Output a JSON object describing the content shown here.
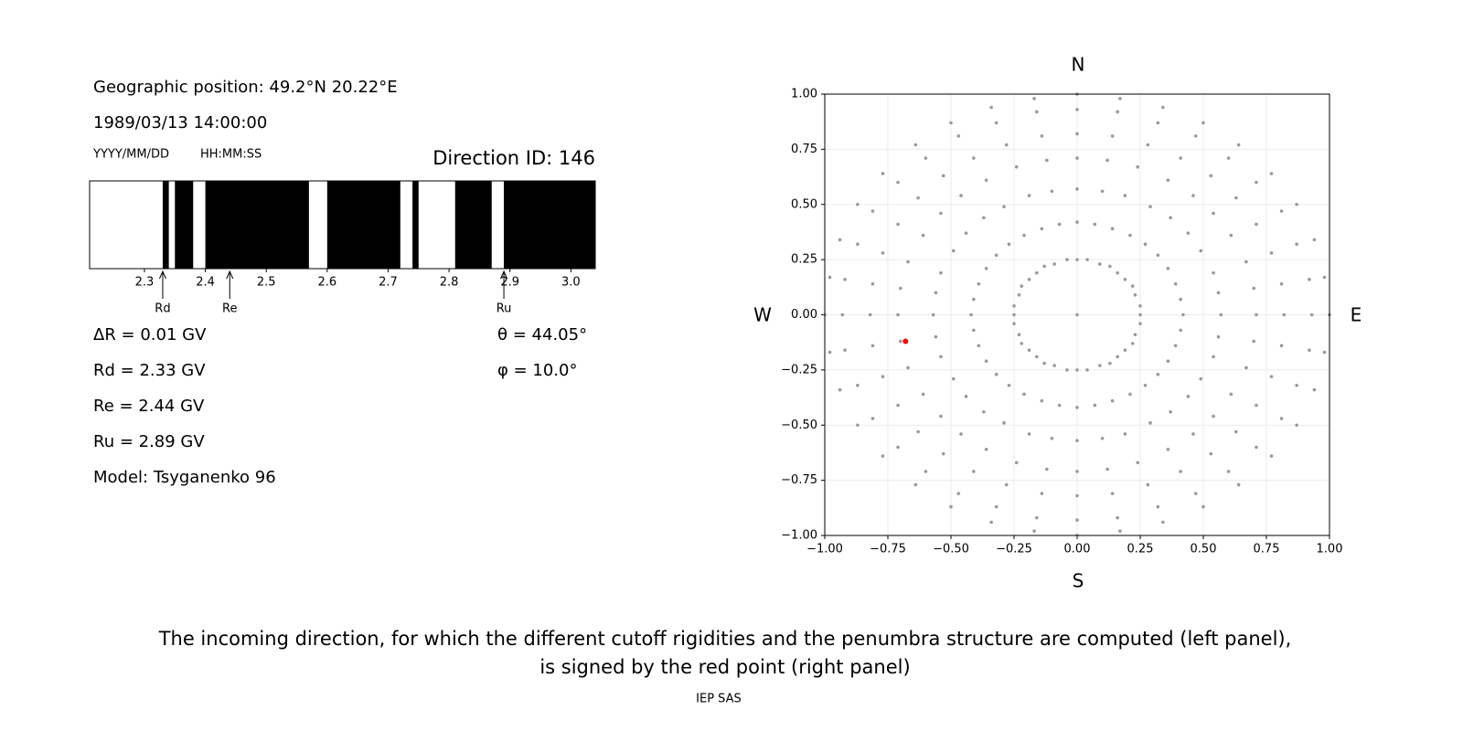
{
  "left_panel": {
    "position": "Geographic position: 49.2°N 20.22°E",
    "datetime": "1989/03/13 14:00:00",
    "date_format": "YYYY/MM/DD",
    "time_format": "HH:MM:SS",
    "direction_id": "Direction ID: 146",
    "parameters": [
      "ΔR = 0.01 GV",
      "Rd = 2.33 GV",
      "Re = 2.44 GV",
      "Ru = 2.89 GV",
      "Model: Tsyganenko 96"
    ],
    "angles": [
      "θ = 44.05°",
      "φ = 10.0°"
    ]
  },
  "chart_data": [
    {
      "type": "penumbra",
      "xlim": [
        2.21,
        3.04
      ],
      "xticks": [
        2.3,
        2.4,
        2.5,
        2.6,
        2.7,
        2.8,
        2.9,
        {
          "value": 3,
          "label": "3.0"
        }
      ],
      "color": "#000000",
      "intervals": [
        [
          2.33,
          2.34
        ],
        [
          2.35,
          2.38
        ],
        [
          2.4,
          2.57
        ],
        [
          2.6,
          2.72
        ],
        [
          2.74,
          2.75
        ],
        [
          2.81,
          2.87
        ],
        [
          2.89,
          3.04
        ]
      ],
      "markers": [
        {
          "label": "Rd",
          "value": 2.33
        },
        {
          "label": "Re",
          "value": 2.44
        },
        {
          "label": "Ru",
          "value": 2.89
        }
      ]
    },
    {
      "type": "scatter",
      "xlim": [
        -1,
        1
      ],
      "ylim": [
        -1,
        1
      ],
      "grid": true,
      "xticks": [
        {
          "value": -1,
          "label": "−1.00"
        },
        {
          "value": -0.75,
          "label": "−0.75"
        },
        {
          "value": -0.5,
          "label": "−0.50"
        },
        {
          "value": -0.25,
          "label": "−0.25"
        },
        {
          "value": 0,
          "label": "0.00"
        },
        {
          "value": 0.25,
          "label": "0.25"
        },
        {
          "value": 0.5,
          "label": "0.50"
        },
        {
          "value": 0.75,
          "label": "0.75"
        },
        {
          "value": 1,
          "label": "1.00"
        }
      ],
      "yticks": [
        {
          "value": -1,
          "label": "−1.00"
        },
        {
          "value": -0.75,
          "label": "−0.75"
        },
        {
          "value": -0.5,
          "label": "−0.50"
        },
        {
          "value": -0.25,
          "label": "−0.25"
        },
        {
          "value": 0,
          "label": "0.00"
        },
        {
          "value": 0.25,
          "label": "0.25"
        },
        {
          "value": 0.5,
          "label": "0.50"
        },
        {
          "value": 0.75,
          "label": "0.75"
        },
        {
          "value": 1,
          "label": "1.00"
        }
      ],
      "directions": {
        "top": "N",
        "bottom": "S",
        "left": "W",
        "right": "E"
      },
      "series": [
        {
          "color": "#999999",
          "x": [
            0,
            0.25,
            0.25,
            0.23,
            0.22,
            0.19,
            0.16,
            0.13,
            0.09,
            0.04,
            0,
            -0.04,
            -0.09,
            -0.13,
            -0.16,
            -0.19,
            -0.22,
            -0.23,
            -0.25,
            -0.25,
            -0.25,
            -0.23,
            -0.22,
            -0.19,
            -0.16,
            -0.13,
            -0.09,
            -0.04,
            0,
            0.04,
            0.09,
            0.13,
            0.16,
            0.19,
            0.22,
            0.23,
            0.25,
            0.42,
            0.41,
            0.39,
            0.36,
            0.32,
            0.27,
            0.21,
            0.14,
            0.07,
            0,
            -0.07,
            -0.14,
            -0.21,
            -0.27,
            -0.32,
            -0.36,
            -0.39,
            -0.41,
            -0.42,
            -0.41,
            -0.39,
            -0.36,
            -0.32,
            -0.27,
            -0.21,
            -0.14,
            -0.07,
            0,
            0.07,
            0.14,
            0.21,
            0.27,
            0.32,
            0.36,
            0.39,
            0.41,
            0.57,
            0.56,
            0.54,
            0.49,
            0.44,
            0.37,
            0.29,
            0.19,
            0.1,
            0,
            -0.1,
            -0.19,
            -0.29,
            -0.37,
            -0.44,
            -0.49,
            -0.54,
            -0.56,
            -0.57,
            -0.56,
            -0.54,
            -0.49,
            -0.44,
            -0.37,
            -0.29,
            -0.19,
            -0.1,
            0,
            0.1,
            0.19,
            0.29,
            0.37,
            0.44,
            0.49,
            0.54,
            0.56,
            0.71,
            0.7,
            0.67,
            0.61,
            0.54,
            0.46,
            0.36,
            0.24,
            0.12,
            0,
            -0.12,
            -0.24,
            -0.36,
            -0.46,
            -0.54,
            -0.61,
            -0.67,
            -0.7,
            -0.71,
            -0.7,
            -0.67,
            -0.61,
            -0.54,
            -0.46,
            -0.36,
            -0.24,
            -0.12,
            0,
            0.12,
            0.24,
            0.36,
            0.46,
            0.54,
            0.61,
            0.67,
            0.7,
            0.82,
            0.81,
            0.77,
            0.71,
            0.63,
            0.53,
            0.41,
            0.28,
            0.14,
            0,
            -0.14,
            -0.28,
            -0.41,
            -0.53,
            -0.63,
            -0.71,
            -0.77,
            -0.81,
            -0.82,
            -0.81,
            -0.77,
            -0.71,
            -0.63,
            -0.53,
            -0.41,
            -0.28,
            -0.14,
            0,
            0.14,
            0.28,
            0.41,
            0.53,
            0.63,
            0.71,
            0.77,
            0.81,
            0.93,
            0.92,
            0.87,
            0.81,
            0.71,
            0.6,
            0.47,
            0.32,
            0.16,
            0,
            -0.16,
            -0.32,
            -0.47,
            -0.6,
            -0.71,
            -0.81,
            -0.87,
            -0.92,
            -0.93,
            -0.92,
            -0.87,
            -0.81,
            -0.71,
            -0.6,
            -0.47,
            -0.32,
            -0.16,
            0,
            0.16,
            0.32,
            0.47,
            0.6,
            0.71,
            0.81,
            0.87,
            0.92,
            1,
            0.98,
            0.94,
            0.87,
            0.77,
            0.64,
            0.5,
            0.34,
            0.17,
            0,
            -0.17,
            -0.34,
            -0.5,
            -0.64,
            -0.77,
            -0.87,
            -0.94,
            -0.98,
            -1,
            -0.98,
            -0.94,
            -0.87,
            -0.77,
            -0.64,
            -0.5,
            -0.34,
            -0.17,
            0,
            0.17,
            0.34,
            0.5,
            0.64,
            0.77,
            0.87,
            0.94,
            0.98
          ],
          "y": [
            0,
            0,
            0.04,
            0.09,
            0.13,
            0.16,
            0.19,
            0.22,
            0.23,
            0.25,
            0.25,
            0.25,
            0.23,
            0.22,
            0.19,
            0.16,
            0.13,
            0.09,
            0.04,
            0,
            -0.04,
            -0.09,
            -0.13,
            -0.16,
            -0.19,
            -0.22,
            -0.23,
            -0.25,
            -0.25,
            -0.25,
            -0.23,
            -0.22,
            -0.19,
            -0.16,
            -0.13,
            -0.09,
            -0.04,
            0,
            0.07,
            0.14,
            0.21,
            0.27,
            0.32,
            0.36,
            0.39,
            0.41,
            0.42,
            0.41,
            0.39,
            0.36,
            0.32,
            0.27,
            0.21,
            0.14,
            0.07,
            0,
            -0.07,
            -0.14,
            -0.21,
            -0.27,
            -0.32,
            -0.36,
            -0.39,
            -0.41,
            -0.42,
            -0.41,
            -0.39,
            -0.36,
            -0.32,
            -0.27,
            -0.21,
            -0.14,
            -0.07,
            0,
            0.1,
            0.19,
            0.29,
            0.37,
            0.44,
            0.49,
            0.54,
            0.56,
            0.57,
            0.56,
            0.54,
            0.49,
            0.44,
            0.37,
            0.29,
            0.19,
            0.1,
            0,
            -0.1,
            -0.19,
            -0.29,
            -0.37,
            -0.44,
            -0.49,
            -0.54,
            -0.56,
            -0.57,
            -0.56,
            -0.54,
            -0.49,
            -0.44,
            -0.37,
            -0.29,
            -0.19,
            -0.1,
            0,
            0.12,
            0.24,
            0.36,
            0.46,
            0.54,
            0.61,
            0.67,
            0.7,
            0.71,
            0.7,
            0.67,
            0.61,
            0.54,
            0.46,
            0.36,
            0.24,
            0.12,
            0,
            -0.12,
            -0.24,
            -0.36,
            -0.46,
            -0.54,
            -0.61,
            -0.67,
            -0.7,
            -0.71,
            -0.7,
            -0.67,
            -0.61,
            -0.54,
            -0.46,
            -0.36,
            -0.24,
            -0.12,
            0,
            0.14,
            0.28,
            0.41,
            0.53,
            0.63,
            0.71,
            0.77,
            0.81,
            0.82,
            0.81,
            0.77,
            0.71,
            0.63,
            0.53,
            0.41,
            0.28,
            0.14,
            0,
            -0.14,
            -0.28,
            -0.41,
            -0.53,
            -0.63,
            -0.71,
            -0.77,
            -0.81,
            -0.82,
            -0.81,
            -0.77,
            -0.71,
            -0.63,
            -0.53,
            -0.41,
            -0.28,
            -0.14,
            0,
            0.16,
            0.32,
            0.47,
            0.6,
            0.71,
            0.81,
            0.87,
            0.92,
            0.93,
            0.92,
            0.87,
            0.81,
            0.71,
            0.6,
            0.47,
            0.32,
            0.16,
            0,
            -0.16,
            -0.32,
            -0.47,
            -0.6,
            -0.71,
            -0.81,
            -0.87,
            -0.92,
            -0.93,
            -0.92,
            -0.87,
            -0.81,
            -0.71,
            -0.6,
            -0.47,
            -0.32,
            -0.16,
            0,
            0.17,
            0.34,
            0.5,
            0.64,
            0.77,
            0.87,
            0.94,
            0.98,
            1,
            0.98,
            0.94,
            0.87,
            0.77,
            0.64,
            0.5,
            0.34,
            0.17,
            0,
            -0.17,
            -0.34,
            -0.5,
            -0.64,
            -0.77,
            -0.87,
            -0.94,
            -0.98,
            -1,
            -0.98,
            -0.94,
            -0.87,
            -0.77,
            -0.64,
            -0.5,
            -0.34,
            -0.17
          ]
        },
        {
          "color": "#ff0000",
          "x": [
            -0.68
          ],
          "y": [
            -0.12
          ]
        }
      ]
    }
  ],
  "caption": [
    "The incoming direction, for which the different cutoff rigidities and the penumbra structure are computed (left panel),",
    "is signed by the red point (right panel)"
  ],
  "footer": "IEP SAS"
}
